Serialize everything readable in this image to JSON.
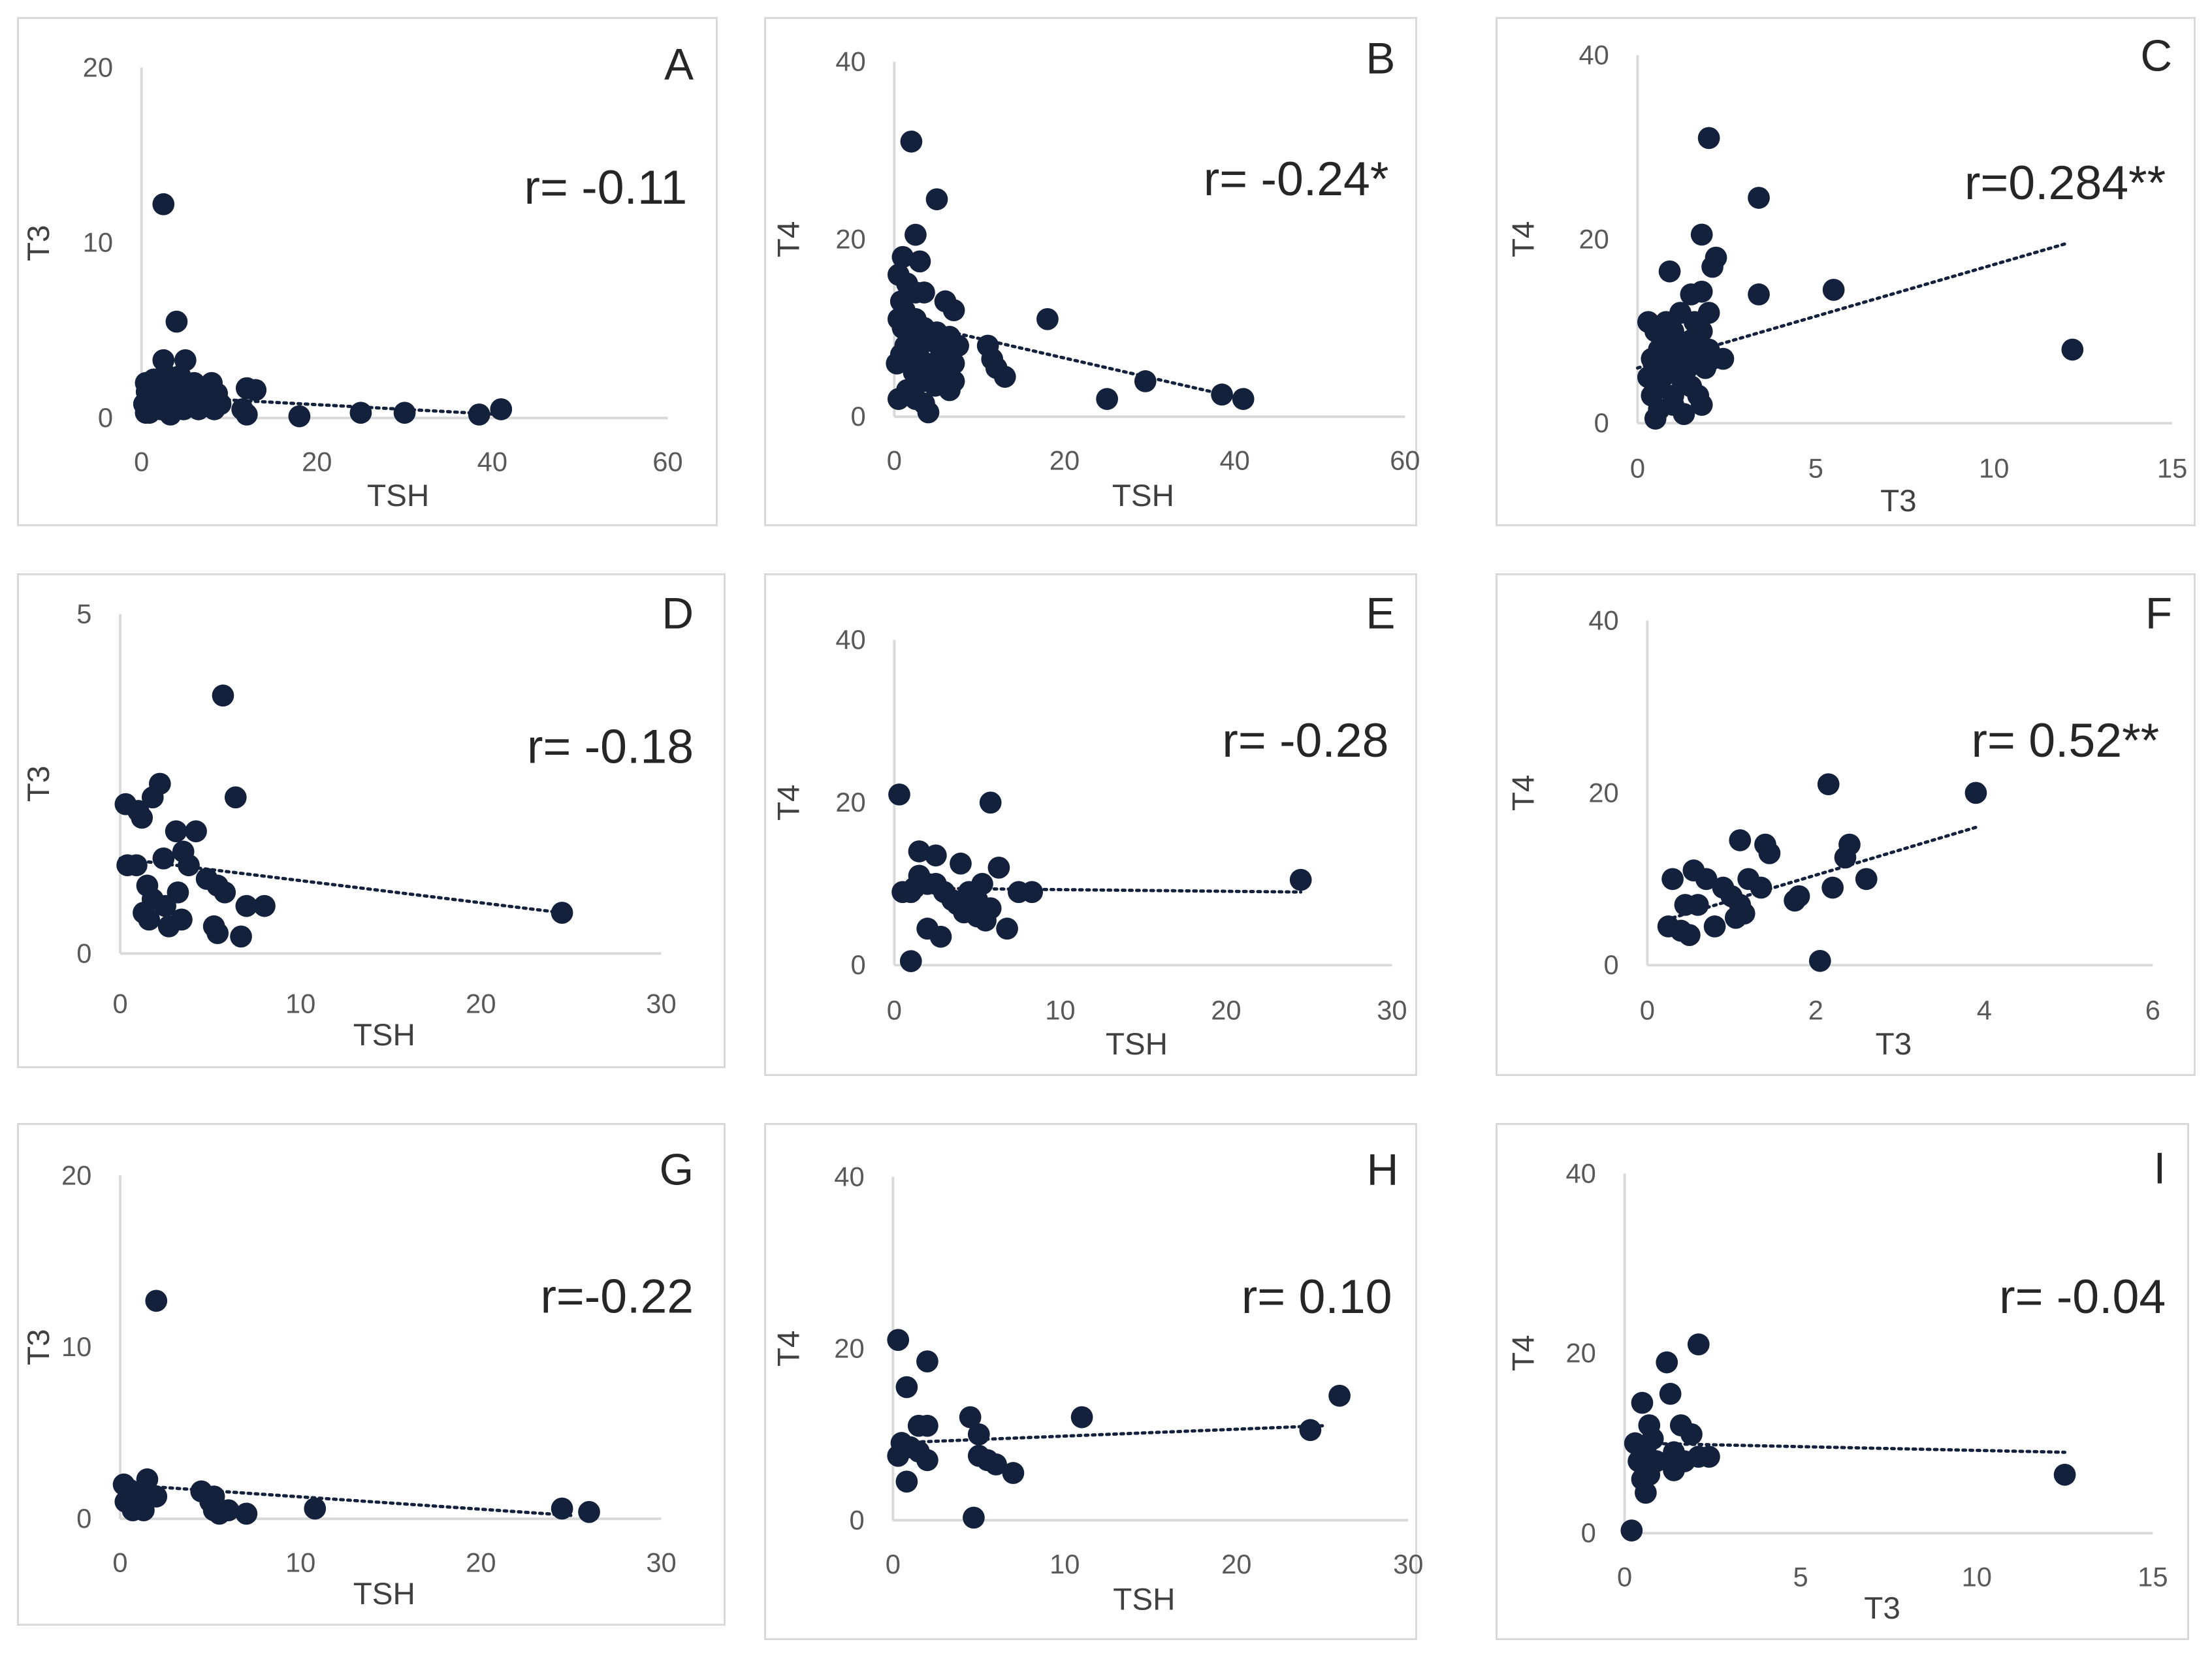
{
  "colors": {
    "marker": "#14213d",
    "axis": "#d9d9d9",
    "text": "#404040"
  },
  "chart_data": [
    {
      "panel": "A",
      "type": "scatter",
      "xlabel": "TSH",
      "ylabel": "T3",
      "annotation": "r= -0.11",
      "xlim": [
        0,
        60
      ],
      "ylim": [
        0,
        20
      ],
      "xticks": [
        "0",
        "20",
        "40",
        "60"
      ],
      "yticks": [
        "0",
        "10",
        "20"
      ],
      "trendline": [
        [
          0,
          1.3
        ],
        [
          41,
          0.2
        ]
      ],
      "points": [
        [
          2.5,
          12.2
        ],
        [
          4,
          5.5
        ],
        [
          2.5,
          3.3
        ],
        [
          5,
          3.3
        ],
        [
          0.5,
          0.3
        ],
        [
          0.8,
          1
        ],
        [
          1,
          2
        ],
        [
          1.2,
          0.5
        ],
        [
          1.5,
          1.2
        ],
        [
          1.8,
          0.8
        ],
        [
          2,
          2
        ],
        [
          2.2,
          0.5
        ],
        [
          2.4,
          1.5
        ],
        [
          2.6,
          0.8
        ],
        [
          2.8,
          1.2
        ],
        [
          3,
          2.2
        ],
        [
          3.2,
          0.4
        ],
        [
          3.4,
          1.6
        ],
        [
          3.6,
          0.9
        ],
        [
          3.8,
          1.3
        ],
        [
          4,
          0.6
        ],
        [
          4.2,
          2
        ],
        [
          4.5,
          1.1
        ],
        [
          4.8,
          0.5
        ],
        [
          5,
          1.7
        ],
        [
          5.2,
          0.9
        ],
        [
          5.5,
          1.3
        ],
        [
          5.8,
          0.7
        ],
        [
          6,
          2
        ],
        [
          6.3,
          1
        ],
        [
          6.5,
          0.5
        ],
        [
          6.8,
          1.5
        ],
        [
          7,
          0.8
        ],
        [
          7.5,
          1.2
        ],
        [
          8,
          2
        ],
        [
          8.3,
          0.5
        ],
        [
          8.6,
          1.4
        ],
        [
          9,
          0.8
        ],
        [
          0.3,
          0.8
        ],
        [
          0.6,
          1.5
        ],
        [
          0.9,
          0.3
        ],
        [
          1.1,
          1.8
        ],
        [
          1.4,
          2.2
        ],
        [
          2.7,
          2.5
        ],
        [
          3.3,
          0.2
        ],
        [
          4.4,
          2.4
        ],
        [
          5.7,
          1.9
        ],
        [
          0.5,
          2
        ],
        [
          12,
          1.7
        ],
        [
          13,
          1.6
        ],
        [
          11.5,
          0.5
        ],
        [
          12,
          0.2
        ],
        [
          18,
          0.1
        ],
        [
          25,
          0.3
        ],
        [
          30,
          0.3
        ],
        [
          38.5,
          0.2
        ],
        [
          41,
          0.5
        ]
      ]
    },
    {
      "panel": "B",
      "type": "scatter",
      "xlabel": "TSH",
      "ylabel": "T4",
      "annotation": "r= -0.24*",
      "xlim": [
        0,
        60
      ],
      "ylim": [
        0,
        40
      ],
      "xticks": [
        "0",
        "20",
        "40",
        "60"
      ],
      "yticks": [
        "0",
        "20",
        "40"
      ],
      "trendline": [
        [
          0,
          11
        ],
        [
          41,
          2
        ]
      ],
      "points": [
        [
          2,
          31
        ],
        [
          5,
          24.5
        ],
        [
          2.5,
          20.5
        ],
        [
          0.5,
          16
        ],
        [
          1,
          18
        ],
        [
          3,
          17.5
        ],
        [
          1.5,
          15
        ],
        [
          2.5,
          14
        ],
        [
          3.5,
          14
        ],
        [
          6,
          13
        ],
        [
          7,
          12
        ],
        [
          18,
          11
        ],
        [
          0.5,
          11
        ],
        [
          1,
          10
        ],
        [
          1.5,
          10.5
        ],
        [
          2,
          9
        ],
        [
          2.5,
          11
        ],
        [
          3,
          8
        ],
        [
          3.5,
          10
        ],
        [
          4,
          9
        ],
        [
          4.5,
          8.5
        ],
        [
          5,
          9.5
        ],
        [
          5.5,
          7
        ],
        [
          6,
          8
        ],
        [
          6.5,
          9
        ],
        [
          7,
          6
        ],
        [
          7.5,
          8
        ],
        [
          0.3,
          6
        ],
        [
          0.8,
          7
        ],
        [
          1.3,
          8
        ],
        [
          1.8,
          6.5
        ],
        [
          2.3,
          5
        ],
        [
          2.8,
          7
        ],
        [
          3.3,
          4
        ],
        [
          3.8,
          6
        ],
        [
          4.3,
          5
        ],
        [
          4.8,
          3.5
        ],
        [
          5.3,
          5
        ],
        [
          0.5,
          2
        ],
        [
          1.5,
          3
        ],
        [
          2.5,
          2
        ],
        [
          3.5,
          1.5
        ],
        [
          4,
          0.5
        ],
        [
          6.5,
          3
        ],
        [
          7,
          4
        ],
        [
          11,
          8
        ],
        [
          11.5,
          6.5
        ],
        [
          12,
          5.5
        ],
        [
          13,
          4.5
        ],
        [
          29.5,
          4
        ],
        [
          25,
          2
        ],
        [
          38.5,
          2.5
        ],
        [
          41,
          2
        ],
        [
          0.8,
          13
        ],
        [
          1.2,
          12
        ]
      ]
    },
    {
      "panel": "C",
      "type": "scatter",
      "xlabel": "T3",
      "ylabel": "T4",
      "annotation": "r=0.284**",
      "xlim": [
        0,
        15
      ],
      "ylim": [
        0,
        40
      ],
      "xticks": [
        "0",
        "5",
        "10",
        "15"
      ],
      "yticks": [
        "0",
        "20",
        "40"
      ],
      "trendline": [
        [
          0,
          6
        ],
        [
          12,
          19.5
        ]
      ],
      "points": [
        [
          2,
          31
        ],
        [
          3.4,
          24.5
        ],
        [
          1.8,
          20.5
        ],
        [
          2.2,
          18
        ],
        [
          2.1,
          17
        ],
        [
          0.9,
          16.5
        ],
        [
          3.4,
          14
        ],
        [
          5.5,
          14.5
        ],
        [
          12.2,
          8
        ],
        [
          1.5,
          14
        ],
        [
          1.8,
          14.3
        ],
        [
          2,
          12
        ],
        [
          1.2,
          12
        ],
        [
          0.3,
          11
        ],
        [
          0.5,
          10
        ],
        [
          0.8,
          9
        ],
        [
          1,
          10
        ],
        [
          1.3,
          8
        ],
        [
          1.5,
          9
        ],
        [
          1.8,
          10
        ],
        [
          2,
          8
        ],
        [
          0.4,
          7
        ],
        [
          0.6,
          8
        ],
        [
          0.9,
          6
        ],
        [
          1.1,
          7
        ],
        [
          1.4,
          6
        ],
        [
          1.6,
          7
        ],
        [
          1.9,
          6
        ],
        [
          2.1,
          7
        ],
        [
          2.4,
          7
        ],
        [
          0.3,
          5
        ],
        [
          0.5,
          4
        ],
        [
          0.7,
          5
        ],
        [
          1,
          3
        ],
        [
          1.2,
          5
        ],
        [
          1.5,
          4
        ],
        [
          1.7,
          3
        ],
        [
          0.6,
          1.5
        ],
        [
          0.5,
          0.5
        ],
        [
          1,
          2
        ],
        [
          1.3,
          1
        ],
        [
          0.4,
          3
        ],
        [
          1.8,
          2
        ],
        [
          0.8,
          11
        ],
        [
          1.6,
          11
        ]
      ]
    },
    {
      "panel": "D",
      "type": "scatter",
      "xlabel": "TSH",
      "ylabel": "T3",
      "annotation": "r= -0.18",
      "xlim": [
        0,
        30
      ],
      "ylim": [
        0,
        5
      ],
      "xticks": [
        "0",
        "10",
        "20",
        "30"
      ],
      "yticks": [
        "0",
        "5"
      ],
      "trendline": [
        [
          0,
          1.4
        ],
        [
          24.5,
          0.6
        ]
      ],
      "points": [
        [
          5.7,
          3.8
        ],
        [
          0.3,
          2.2
        ],
        [
          1,
          2.1
        ],
        [
          1.2,
          2
        ],
        [
          1.8,
          2.3
        ],
        [
          2.2,
          2.5
        ],
        [
          6.4,
          2.3
        ],
        [
          3.1,
          1.8
        ],
        [
          4.2,
          1.8
        ],
        [
          3.5,
          1.5
        ],
        [
          0.4,
          1.3
        ],
        [
          0.9,
          1.3
        ],
        [
          2.4,
          1.4
        ],
        [
          3.8,
          1.3
        ],
        [
          4.8,
          1.1
        ],
        [
          5.4,
          1
        ],
        [
          1.5,
          1
        ],
        [
          5.8,
          0.9
        ],
        [
          1.8,
          0.8
        ],
        [
          3.2,
          0.9
        ],
        [
          7,
          0.7
        ],
        [
          8,
          0.7
        ],
        [
          2.5,
          0.7
        ],
        [
          1.3,
          0.6
        ],
        [
          1.6,
          0.5
        ],
        [
          3.4,
          0.5
        ],
        [
          2.7,
          0.4
        ],
        [
          5.2,
          0.4
        ],
        [
          5.4,
          0.3
        ],
        [
          6.7,
          0.25
        ],
        [
          24.5,
          0.6
        ]
      ]
    },
    {
      "panel": "E",
      "type": "scatter",
      "xlabel": "TSH",
      "ylabel": "T4",
      "annotation": "r= -0.28",
      "xlim": [
        0,
        30
      ],
      "ylim": [
        0,
        40
      ],
      "xticks": [
        "0",
        "10",
        "20",
        "30"
      ],
      "yticks": [
        "0",
        "20",
        "40"
      ],
      "trendline": [
        [
          0,
          9.5
        ],
        [
          24.5,
          9
        ]
      ],
      "points": [
        [
          0.3,
          21
        ],
        [
          5.8,
          20
        ],
        [
          1.5,
          14
        ],
        [
          2.5,
          13.5
        ],
        [
          4,
          12.5
        ],
        [
          6.3,
          12
        ],
        [
          1.5,
          11
        ],
        [
          2,
          10
        ],
        [
          2.5,
          10
        ],
        [
          0.5,
          9
        ],
        [
          1,
          9
        ],
        [
          3,
          9
        ],
        [
          3.5,
          8
        ],
        [
          4.5,
          9
        ],
        [
          5,
          8
        ],
        [
          7.5,
          9
        ],
        [
          8.3,
          9
        ],
        [
          24.5,
          10.5
        ],
        [
          1.2,
          9.5
        ],
        [
          3.8,
          7.5
        ],
        [
          4.2,
          6.5
        ],
        [
          5.3,
          10
        ],
        [
          5.8,
          7
        ],
        [
          5,
          6
        ],
        [
          5.5,
          5.5
        ],
        [
          2,
          4.5
        ],
        [
          2.8,
          3.5
        ],
        [
          6.8,
          4.5
        ],
        [
          1,
          0.5
        ]
      ]
    },
    {
      "panel": "F",
      "type": "scatter",
      "xlabel": "T3",
      "ylabel": "T4",
      "annotation": "r= 0.52**",
      "xlim": [
        0,
        6
      ],
      "ylim": [
        0,
        40
      ],
      "xticks": [
        "0",
        "2",
        "4",
        "6"
      ],
      "yticks": [
        "0",
        "20",
        "40"
      ],
      "trendline": [
        [
          0.3,
          5.5
        ],
        [
          3.9,
          16
        ]
      ],
      "points": [
        [
          2.15,
          21
        ],
        [
          3.9,
          20
        ],
        [
          1.4,
          14
        ],
        [
          2.4,
          14
        ],
        [
          1.1,
          14.5
        ],
        [
          1.45,
          13
        ],
        [
          2.35,
          12.5
        ],
        [
          0.55,
          11
        ],
        [
          1.2,
          10
        ],
        [
          2.6,
          10
        ],
        [
          0.3,
          10
        ],
        [
          2.2,
          9
        ],
        [
          0.7,
          10
        ],
        [
          0.9,
          9
        ],
        [
          1,
          8
        ],
        [
          1.35,
          9
        ],
        [
          1.8,
          8
        ],
        [
          0.45,
          7
        ],
        [
          0.6,
          7
        ],
        [
          1.1,
          7
        ],
        [
          1.75,
          7.5
        ],
        [
          0.8,
          4.5
        ],
        [
          0.4,
          4
        ],
        [
          0.25,
          4.5
        ],
        [
          0.5,
          3.5
        ],
        [
          1.15,
          6
        ],
        [
          1.05,
          5.5
        ],
        [
          2.05,
          0.5
        ]
      ]
    },
    {
      "panel": "G",
      "type": "scatter",
      "xlabel": "TSH",
      "ylabel": "T3",
      "annotation": "r=-0.22",
      "xlim": [
        0,
        30
      ],
      "ylim": [
        0,
        20
      ],
      "xticks": [
        "0",
        "10",
        "20",
        "30"
      ],
      "yticks": [
        "0",
        "10",
        "20"
      ],
      "trendline": [
        [
          0,
          2
        ],
        [
          25,
          0.2
        ]
      ],
      "points": [
        [
          2,
          12.7
        ],
        [
          0.2,
          2
        ],
        [
          0.5,
          1.7
        ],
        [
          1.5,
          2.3
        ],
        [
          1.5,
          1.5
        ],
        [
          1,
          1.2
        ],
        [
          2,
          1.3
        ],
        [
          0.3,
          1
        ],
        [
          0.7,
          0.5
        ],
        [
          1.3,
          0.5
        ],
        [
          4.5,
          1.6
        ],
        [
          5,
          1
        ],
        [
          5.2,
          1.3
        ],
        [
          5.2,
          0.5
        ],
        [
          5.5,
          0.3
        ],
        [
          6,
          0.5
        ],
        [
          7,
          0.3
        ],
        [
          10.8,
          0.6
        ],
        [
          24.5,
          0.6
        ],
        [
          26,
          0.4
        ]
      ]
    },
    {
      "panel": "H",
      "type": "scatter",
      "xlabel": "TSH",
      "ylabel": "T4",
      "annotation": "r= 0.10",
      "xlim": [
        0,
        30
      ],
      "ylim": [
        0,
        40
      ],
      "xticks": [
        "0",
        "10",
        "20",
        "30"
      ],
      "yticks": [
        "0",
        "20",
        "40"
      ],
      "trendline": [
        [
          0,
          9
        ],
        [
          25,
          11
        ]
      ],
      "points": [
        [
          0.3,
          21
        ],
        [
          2,
          18.5
        ],
        [
          0.8,
          15.5
        ],
        [
          4.5,
          12
        ],
        [
          11,
          12
        ],
        [
          26,
          14.5
        ],
        [
          1.5,
          11
        ],
        [
          2,
          11
        ],
        [
          5,
          10
        ],
        [
          24.3,
          10.5
        ],
        [
          0.5,
          9
        ],
        [
          1,
          8.5
        ],
        [
          0.3,
          7.5
        ],
        [
          1.5,
          8
        ],
        [
          2,
          7
        ],
        [
          5,
          7.5
        ],
        [
          5.5,
          7
        ],
        [
          6,
          6.5
        ],
        [
          7,
          5.5
        ],
        [
          0.8,
          4.5
        ],
        [
          4.7,
          0.3
        ]
      ]
    },
    {
      "panel": "I",
      "type": "scatter",
      "xlabel": "T3",
      "ylabel": "T4",
      "annotation": "r= -0.04",
      "xlim": [
        0,
        15
      ],
      "ylim": [
        0,
        40
      ],
      "xticks": [
        "0",
        "5",
        "10",
        "15"
      ],
      "yticks": [
        "0",
        "20",
        "40"
      ],
      "trendline": [
        [
          0.5,
          10
        ],
        [
          12.5,
          9
        ]
      ],
      "points": [
        [
          2.1,
          21
        ],
        [
          1.2,
          19
        ],
        [
          1.3,
          15.5
        ],
        [
          0.5,
          14.5
        ],
        [
          0.7,
          12
        ],
        [
          1.6,
          12
        ],
        [
          0.8,
          10.5
        ],
        [
          0.3,
          10
        ],
        [
          1.9,
          11
        ],
        [
          0.6,
          9.5
        ],
        [
          1.4,
          9
        ],
        [
          0.4,
          8
        ],
        [
          0.9,
          8
        ],
        [
          1.7,
          8
        ],
        [
          2.1,
          8.5
        ],
        [
          2.4,
          8.5
        ],
        [
          0.5,
          6
        ],
        [
          0.7,
          6.5
        ],
        [
          1.4,
          7
        ],
        [
          0.6,
          4.5
        ],
        [
          12.5,
          6.5
        ],
        [
          0.2,
          0.3
        ]
      ]
    }
  ]
}
